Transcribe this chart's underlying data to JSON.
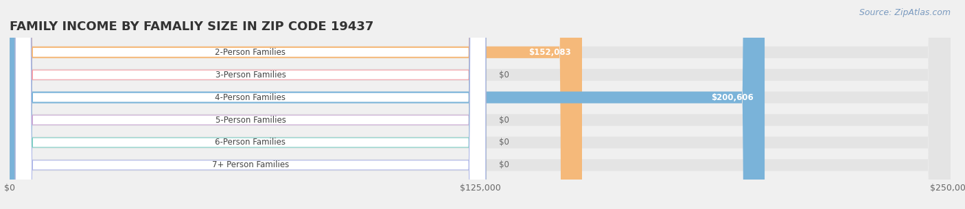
{
  "title": "FAMILY INCOME BY FAMALIY SIZE IN ZIP CODE 19437",
  "source_text": "Source: ZipAtlas.com",
  "categories": [
    "2-Person Families",
    "3-Person Families",
    "4-Person Families",
    "5-Person Families",
    "6-Person Families",
    "7+ Person Families"
  ],
  "values": [
    152083,
    0,
    200606,
    0,
    0,
    0
  ],
  "bar_colors": [
    "#f5b97a",
    "#f4a0a8",
    "#7ab3d9",
    "#c9a8d4",
    "#7ecec4",
    "#b0b8e8"
  ],
  "xmax": 250000,
  "xticks": [
    0,
    125000,
    250000
  ],
  "xtick_labels": [
    "$0",
    "$125,000",
    "$250,000"
  ],
  "background_color": "#f0f0f0",
  "bar_bg_color": "#e4e4e4",
  "title_fontsize": 13,
  "source_fontsize": 9,
  "label_fontsize": 8.5,
  "value_fontsize": 8.5,
  "bar_height": 0.52
}
